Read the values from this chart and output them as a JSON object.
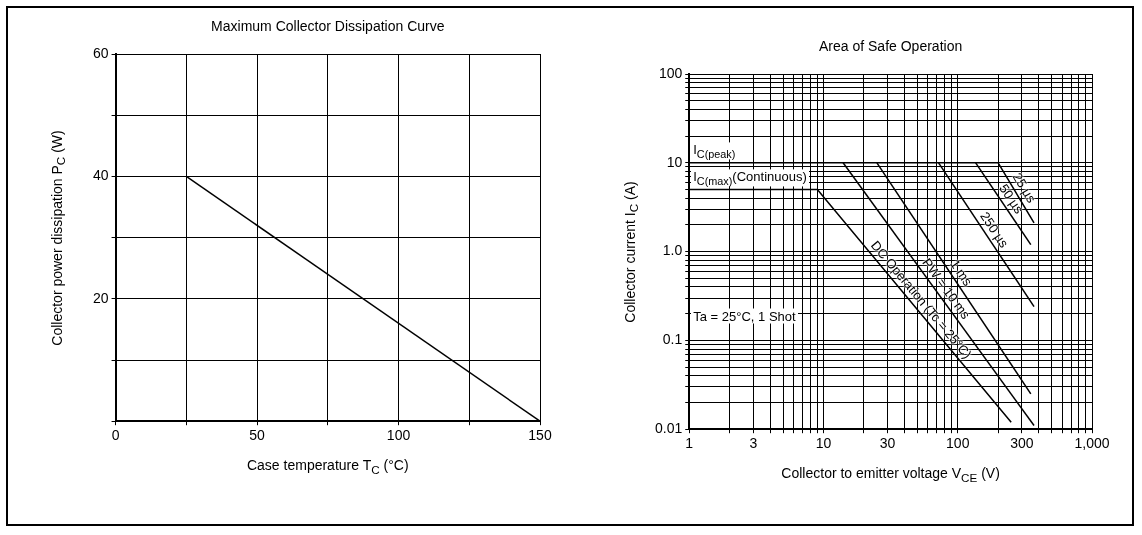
{
  "chart_data": [
    {
      "type": "line",
      "title": "Maximum Collector Dissipation Curve",
      "xlabel": "Case temperature  T$_{C}$ (°C)",
      "ylabel": "Collector power dissipation  P$_{C}$  (W)",
      "x": [
        25,
        150
      ],
      "marker": "none",
      "series": [
        {
          "color": "#000000",
          "values": [
            40,
            0
          ]
        }
      ],
      "xlim": [
        0,
        150
      ],
      "xticks": [
        0,
        {
          "value": 25,
          "label": null
        },
        50,
        {
          "value": 75,
          "label": null
        },
        100,
        {
          "value": 125,
          "label": null
        },
        150
      ],
      "ylim": [
        0,
        60
      ],
      "yticks": [
        {
          "value": 0,
          "label": null
        },
        {
          "value": 10,
          "label": null
        },
        20,
        {
          "value": 30,
          "label": null
        },
        40,
        {
          "value": 50,
          "label": null
        },
        60
      ],
      "grid": true
    },
    {
      "type": "line",
      "title": "Area of Safe Operation",
      "xlabel": "Collector to emitter voltage  V$_{CE}$  (V)",
      "ylabel": "Collector current  I$_{C}$  (A)",
      "log": "xy",
      "marker": "none",
      "grid": true,
      "series": [
        {
          "name": "DC Operation (Tc = 25°C)",
          "color": "#000000",
          "x": [
            1,
            9,
            250
          ],
          "values": [
            5,
            5,
            0.012
          ]
        },
        {
          "name": "PW = 10 ms",
          "color": "#000000",
          "x": [
            14,
            370
          ],
          "values": [
            10,
            0.011
          ]
        },
        {
          "name": "1 ms",
          "color": "#000000",
          "x": [
            25,
            350
          ],
          "values": [
            10,
            0.025
          ]
        },
        {
          "name": "250 µs",
          "color": "#000000",
          "x": [
            72,
            370
          ],
          "values": [
            10,
            0.24
          ]
        },
        {
          "name": "50 µs",
          "color": "#000000",
          "x": [
            136,
            350
          ],
          "values": [
            10,
            1.2
          ]
        },
        {
          "name": "25 µs",
          "color": "#000000",
          "x": [
            1,
            200,
            370
          ],
          "values": [
            10,
            10,
            2.1
          ]
        }
      ],
      "annotations": [
        {
          "text": "I$_{C(peak)}$",
          "x": 1,
          "y": 10
        },
        {
          "text": "I$_{C(max)}$(Continuous)",
          "x": 1,
          "y": 5
        },
        "Ta = 25°C, 1 Shot"
      ],
      "xlim": [
        1,
        1000
      ],
      "xticks": [
        1,
        {
          "value": 2,
          "label": null
        },
        3,
        {
          "value": 4,
          "label": null
        },
        {
          "value": 5,
          "label": null
        },
        {
          "value": 6,
          "label": null
        },
        {
          "value": 7,
          "label": null
        },
        {
          "value": 8,
          "label": null
        },
        {
          "value": 9,
          "label": null
        },
        10,
        {
          "value": 20,
          "label": null
        },
        30,
        {
          "value": 40,
          "label": null
        },
        {
          "value": 50,
          "label": null
        },
        {
          "value": 60,
          "label": null
        },
        {
          "value": 70,
          "label": null
        },
        {
          "value": 80,
          "label": null
        },
        {
          "value": 90,
          "label": null
        },
        100,
        {
          "value": 200,
          "label": null
        },
        300,
        {
          "value": 400,
          "label": null
        },
        {
          "value": 500,
          "label": null
        },
        {
          "value": 600,
          "label": null
        },
        {
          "value": 700,
          "label": null
        },
        {
          "value": 800,
          "label": null
        },
        {
          "value": 900,
          "label": null
        },
        {
          "value": 1000,
          "label": "1,000"
        }
      ],
      "ylim": [
        0.01,
        100
      ],
      "yticks": [
        0.01,
        {
          "value": 0.02,
          "label": null
        },
        {
          "value": 0.03,
          "label": null
        },
        {
          "value": 0.04,
          "label": null
        },
        {
          "value": 0.05,
          "label": null
        },
        {
          "value": 0.06,
          "label": null
        },
        {
          "value": 0.07,
          "label": null
        },
        {
          "value": 0.08,
          "label": null
        },
        {
          "value": 0.09,
          "label": null
        },
        0.1,
        {
          "value": 0.2,
          "label": null
        },
        {
          "value": 0.3,
          "label": null
        },
        {
          "value": 0.4,
          "label": null
        },
        {
          "value": 0.5,
          "label": null
        },
        {
          "value": 0.6,
          "label": null
        },
        {
          "value": 0.7,
          "label": null
        },
        {
          "value": 0.8,
          "label": null
        },
        {
          "value": 0.9,
          "label": null
        },
        {
          "value": 1,
          "label": "1.0"
        },
        {
          "value": 2,
          "label": null
        },
        {
          "value": 3,
          "label": null
        },
        {
          "value": 4,
          "label": null
        },
        {
          "value": 5,
          "label": null
        },
        {
          "value": 6,
          "label": null
        },
        {
          "value": 7,
          "label": null
        },
        {
          "value": 8,
          "label": null
        },
        {
          "value": 9,
          "label": null
        },
        10,
        {
          "value": 20,
          "label": null
        },
        {
          "value": 30,
          "label": null
        },
        {
          "value": 40,
          "label": null
        },
        {
          "value": 50,
          "label": null
        },
        {
          "value": 60,
          "label": null
        },
        {
          "value": 70,
          "label": null
        },
        {
          "value": 80,
          "label": null
        },
        {
          "value": 90,
          "label": null
        },
        100
      ]
    }
  ]
}
